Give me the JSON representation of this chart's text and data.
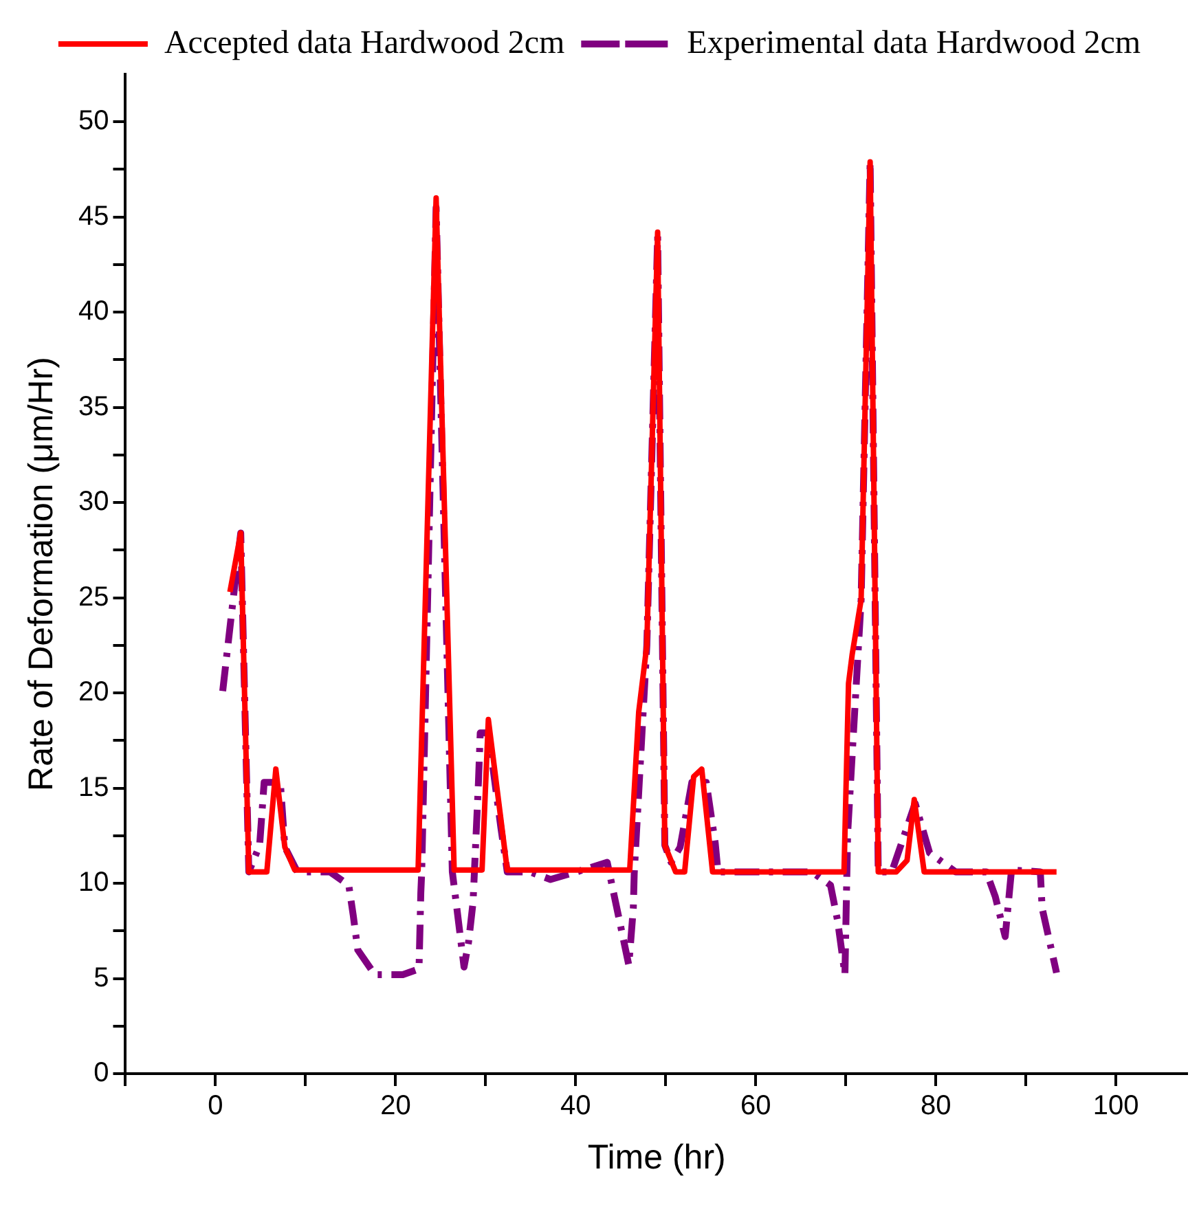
{
  "chart_data": {
    "type": "line",
    "xlabel": "Time (hr)",
    "ylabel": "Rate of Deformation (μm/Hr)",
    "xlim": [
      -10,
      108
    ],
    "ylim": [
      0,
      52.5
    ],
    "xticks": [
      {
        "value": -10,
        "label": null
      },
      0,
      {
        "value": 10,
        "label": null
      },
      20,
      {
        "value": 30,
        "label": null
      },
      40,
      {
        "value": 50,
        "label": null
      },
      60,
      {
        "value": 70,
        "label": null
      },
      80,
      {
        "value": 90,
        "label": null
      },
      100
    ],
    "yticks": [
      0,
      {
        "value": 2.5,
        "label": null
      },
      5,
      {
        "value": 7.5,
        "label": null
      },
      10,
      {
        "value": 12.5,
        "label": null
      },
      15,
      {
        "value": 17.5,
        "label": null
      },
      20,
      {
        "value": 22.5,
        "label": null
      },
      25,
      {
        "value": 27.5,
        "label": null
      },
      30,
      {
        "value": 32.5,
        "label": null
      },
      35,
      {
        "value": 37.5,
        "label": null
      },
      40,
      {
        "value": 42.5,
        "label": null
      },
      45,
      {
        "value": 47.5,
        "label": null
      },
      50
    ],
    "grid": false,
    "legend": "top",
    "marker": "none",
    "series": [
      {
        "name": "Accepted data Hardwood 2cm",
        "color": "#ff0000",
        "line_style": "solid",
        "x": [
          1.6,
          2.8,
          3.7,
          5.7,
          6.7,
          7.7,
          8.8,
          22.5,
          24.5,
          26.5,
          29.6,
          30.3,
          32.4,
          46,
          47,
          47.9,
          49.1,
          49.9,
          51.1,
          52.1,
          53.1,
          54,
          55.2,
          69.8,
          70.3,
          70.7,
          71.7,
          72.7,
          73.6,
          75.6,
          76.8,
          77.6,
          78.7,
          93.4
        ],
        "values": [
          25.3,
          28.4,
          10.6,
          10.6,
          16,
          11.9,
          10.7,
          10.7,
          46,
          10.7,
          10.7,
          18.6,
          10.7,
          10.7,
          19,
          22.5,
          44.2,
          12,
          10.6,
          10.6,
          15.6,
          16,
          10.6,
          10.6,
          20.5,
          22,
          24.9,
          47.9,
          10.6,
          10.6,
          11.2,
          14.4,
          10.6,
          10.6
        ]
      },
      {
        "name": "Experimental data Hardwood 2cm",
        "color": "#800080",
        "line_style": "dashed",
        "x": [
          0.8,
          2.8,
          3.7,
          4.9,
          5.4,
          7.2,
          7.7,
          9.1,
          12.7,
          14.8,
          15.3,
          15.8,
          17.7,
          20.8,
          22.6,
          22.8,
          22.9,
          24.5,
          26.3,
          26.8,
          27.6,
          28.1,
          28.6,
          29.2,
          29.4,
          30.3,
          31.7,
          32.4,
          34.9,
          37.2,
          40.1,
          43.5,
          44.3,
          45.9,
          46.4,
          46.5,
          47.9,
          49.1,
          49.9,
          50.6,
          51.6,
          52.9,
          54.5,
          55.5,
          55.8,
          66.2,
          68.3,
          69.1,
          69.9,
          70.2,
          71.7,
          72.7,
          73.6,
          75.1,
          77.7,
          79.3,
          82.2,
          85.6,
          86.6,
          87.7,
          88.4,
          91.6,
          91.8,
          93.4
        ],
        "values": [
          20.1,
          28.4,
          10.6,
          12,
          15.3,
          15.3,
          11.9,
          10.6,
          10.6,
          9.9,
          8.3,
          6.5,
          5.2,
          5.2,
          5.5,
          9.5,
          10.6,
          45.5,
          10.6,
          8.7,
          5.6,
          6.9,
          9,
          15.3,
          17.9,
          17.9,
          12.9,
          10.6,
          10.6,
          10.2,
          10.6,
          11.1,
          9.3,
          5.7,
          8.7,
          10.5,
          22.5,
          44,
          12,
          11.1,
          11.9,
          15.3,
          15.3,
          12.1,
          10.6,
          10.6,
          9.9,
          8,
          5.2,
          12.6,
          24.9,
          47.9,
          10.6,
          10.6,
          14.2,
          11.6,
          10.6,
          10.6,
          9.3,
          7.2,
          10.7,
          10.6,
          8.7,
          5.3
        ]
      }
    ]
  }
}
